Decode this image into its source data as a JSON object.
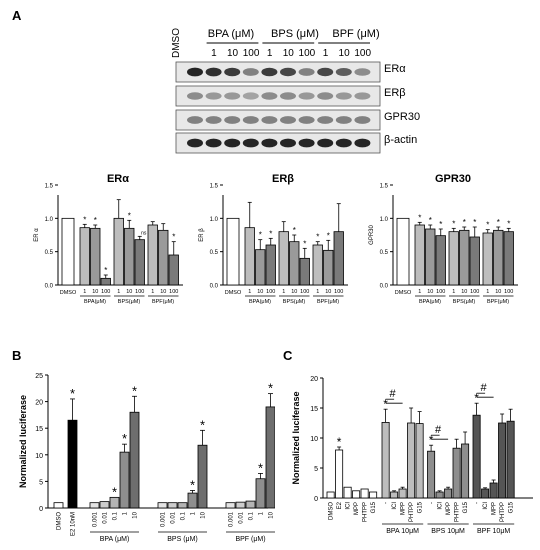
{
  "panel_labels": {
    "a": "A",
    "b": "B",
    "c": "C"
  },
  "western_blot": {
    "dmso_label": "DMSO",
    "groups": [
      "BPA (μM)",
      "BPS (μM)",
      "BPF (μM)"
    ],
    "doses": [
      "1",
      "10",
      "100"
    ],
    "bands": [
      "ERα",
      "ERβ",
      "GPR30",
      "β-actin"
    ],
    "band_intensity": {
      "ERα": [
        0.95,
        0.9,
        0.85,
        0.55,
        0.85,
        0.8,
        0.55,
        0.8,
        0.7,
        0.5
      ],
      "ERβ": [
        0.5,
        0.45,
        0.45,
        0.4,
        0.5,
        0.5,
        0.45,
        0.5,
        0.45,
        0.45
      ],
      "GPR30": [
        0.55,
        0.55,
        0.55,
        0.55,
        0.55,
        0.55,
        0.55,
        0.55,
        0.55,
        0.55
      ],
      "β-actin": [
        0.95,
        0.95,
        0.95,
        0.95,
        0.95,
        0.95,
        0.95,
        0.95,
        0.95,
        0.95
      ]
    }
  },
  "chart_data": [
    {
      "type": "bar",
      "title": "ERα",
      "ylabel": "ER α",
      "ylim": [
        0,
        1.5
      ],
      "yticks": [
        "0.0",
        "0.5",
        "1.0",
        "1.5"
      ],
      "ctrl_label": "DMSO",
      "dose_labels": [
        "1",
        "10",
        "100"
      ],
      "group_labels": [
        "BPA(μM)",
        "BPS(μM)",
        "BPF(μM)"
      ],
      "colors": [
        "#ffffff",
        "#bdbdbd",
        "#9a9a9a",
        "#7a7a7a"
      ],
      "values": [
        1.0,
        0.86,
        0.85,
        0.1,
        1.0,
        0.85,
        0.68,
        0.9,
        0.82,
        0.45
      ],
      "errors": [
        0,
        0.05,
        0.05,
        0.05,
        0.28,
        0.12,
        0.05,
        0.05,
        0.1,
        0.2
      ],
      "marks": [
        "",
        "*",
        "*",
        "*",
        "",
        "*",
        "ns",
        "",
        "",
        "*"
      ]
    },
    {
      "type": "bar",
      "title": "ERβ",
      "ylabel": "ER β",
      "ylim": [
        0,
        1.5
      ],
      "yticks": [
        "0.0",
        "0.5",
        "1.0",
        "1.5"
      ],
      "ctrl_label": "DMSO",
      "dose_labels": [
        "1",
        "10",
        "100"
      ],
      "group_labels": [
        "BPA(μM)",
        "BPS(μM)",
        "BPF(μM)"
      ],
      "colors": [
        "#ffffff",
        "#bdbdbd",
        "#9a9a9a",
        "#7a7a7a"
      ],
      "values": [
        1.0,
        0.86,
        0.53,
        0.6,
        0.8,
        0.65,
        0.4,
        0.6,
        0.52,
        0.8
      ],
      "errors": [
        0,
        0.38,
        0.15,
        0.1,
        0.15,
        0.1,
        0.15,
        0.05,
        0.15,
        0.42
      ],
      "marks": [
        "",
        "",
        "*",
        "*",
        "",
        "*",
        "*",
        "*",
        "*",
        ""
      ]
    },
    {
      "type": "bar",
      "title": "GPR30",
      "ylabel": "GPR30",
      "ylim": [
        0,
        1.5
      ],
      "yticks": [
        "0.0",
        "0.5",
        "1.0",
        "1.5"
      ],
      "ctrl_label": "DMSO",
      "dose_labels": [
        "1",
        "10",
        "100"
      ],
      "group_labels": [
        "BPA(μM)",
        "BPS(μM)",
        "BPF(μM)"
      ],
      "colors": [
        "#ffffff",
        "#bdbdbd",
        "#9a9a9a",
        "#7a7a7a"
      ],
      "values": [
        1.0,
        0.9,
        0.84,
        0.74,
        0.8,
        0.82,
        0.72,
        0.78,
        0.82,
        0.8
      ],
      "errors": [
        0,
        0.04,
        0.06,
        0.1,
        0.05,
        0.05,
        0.15,
        0.05,
        0.05,
        0.05
      ],
      "marks": [
        "",
        "*",
        "*",
        "*",
        "*",
        "*",
        "*",
        "*",
        "*",
        "*"
      ]
    },
    {
      "type": "bar",
      "ylabel": "Normalized luciferase",
      "ylim": [
        0,
        25
      ],
      "yticks": [
        "0",
        "5",
        "10",
        "15",
        "20",
        "25"
      ],
      "ctrl_bars": [
        {
          "label": "DMSO",
          "value": 1,
          "error": 0,
          "color": "#ffffff",
          "mark": ""
        },
        {
          "label": "E2 10nM",
          "value": 16.5,
          "error": 4,
          "color": "#000000",
          "mark": "*"
        }
      ],
      "groups": [
        {
          "label": "BPA (μM)",
          "doses": [
            "0.001",
            "0.01",
            "0.1",
            "1",
            "10"
          ],
          "values": [
            1,
            1.2,
            2,
            10.5,
            18
          ],
          "errors": [
            0,
            0,
            0,
            1.5,
            3
          ],
          "marks": [
            "",
            "",
            "*",
            "*",
            "*"
          ]
        },
        {
          "label": "BPS (μM)",
          "doses": [
            "0.001",
            "0.01",
            "0.1",
            "1",
            "10"
          ],
          "values": [
            1,
            1,
            1,
            2.8,
            11.8
          ],
          "errors": [
            0,
            0,
            0,
            0.5,
            2.8
          ],
          "marks": [
            "",
            "",
            "",
            "*",
            "*"
          ]
        },
        {
          "label": "BPF (μM)",
          "doses": [
            "0.001",
            "0.01",
            "0.1",
            "1",
            "10"
          ],
          "values": [
            1,
            1.1,
            1.3,
            5.5,
            19
          ],
          "errors": [
            0,
            0,
            0,
            1,
            2.5
          ],
          "marks": [
            "",
            "",
            "",
            "*",
            "*"
          ]
        }
      ],
      "dose_colors": [
        "#e4e4e4",
        "#cdcdcd",
        "#b4b4b4",
        "#8e8e8e",
        "#6e6e6e"
      ]
    },
    {
      "type": "bar",
      "ylabel": "Normalized luciferase",
      "ylim": [
        0,
        20
      ],
      "yticks": [
        "0",
        "5",
        "10",
        "15",
        "20"
      ],
      "base_bars": [
        {
          "label": "DMSO",
          "value": 1,
          "error": 0,
          "mark": ""
        },
        {
          "label": "E2",
          "value": 8,
          "error": 0.5,
          "mark": "*"
        },
        {
          "label": "ICI",
          "value": 1.8,
          "error": 0,
          "mark": ""
        },
        {
          "label": "MPP",
          "value": 1.2,
          "error": 0,
          "mark": ""
        },
        {
          "label": "PHTPP",
          "value": 1.5,
          "error": 0,
          "mark": ""
        },
        {
          "label": "G15",
          "value": 1,
          "error": 0,
          "mark": ""
        }
      ],
      "groups": [
        {
          "label": "BPA 10μM",
          "bars": [
            {
              "label": "-",
              "value": 12.6,
              "error": 2.2,
              "mark": "*"
            },
            {
              "label": "ICI",
              "value": 1,
              "error": 0.2,
              "mark": ""
            },
            {
              "label": "MPP",
              "value": 1.5,
              "error": 0.3,
              "mark": ""
            },
            {
              "label": "PHTPP",
              "value": 12.5,
              "error": 2.5,
              "mark": ""
            },
            {
              "label": "G15",
              "value": 12.4,
              "error": 2,
              "mark": ""
            }
          ],
          "color": "#bdbdbd"
        },
        {
          "label": "BPS 10μM",
          "bars": [
            {
              "label": "-",
              "value": 7.8,
              "error": 1,
              "mark": "*"
            },
            {
              "label": "ICI",
              "value": 1,
              "error": 0.2,
              "mark": ""
            },
            {
              "label": "MPP",
              "value": 1.5,
              "error": 0.3,
              "mark": ""
            },
            {
              "label": "PHTPP",
              "value": 8.3,
              "error": 1.5,
              "mark": ""
            },
            {
              "label": "G15",
              "value": 9,
              "error": 2,
              "mark": ""
            }
          ],
          "color": "#8e8e8e"
        },
        {
          "label": "BPF 10μM",
          "bars": [
            {
              "label": "-",
              "value": 13.8,
              "error": 2,
              "mark": "*"
            },
            {
              "label": "ICI",
              "value": 1.5,
              "error": 0.2,
              "mark": ""
            },
            {
              "label": "MPP",
              "value": 2.5,
              "error": 0.5,
              "mark": ""
            },
            {
              "label": "PHTPP",
              "value": 12.5,
              "error": 1.5,
              "mark": ""
            },
            {
              "label": "G15",
              "value": 12.8,
              "error": 2,
              "mark": ""
            }
          ],
          "color": "#555555"
        }
      ],
      "sig_symbol": "#"
    }
  ]
}
